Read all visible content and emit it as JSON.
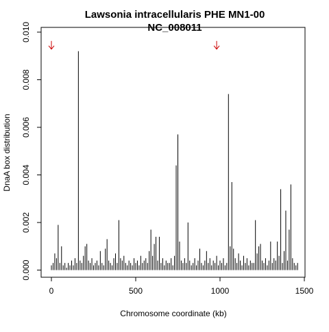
{
  "chart_data": {
    "type": "spike",
    "title": [
      "Lawsonia intracellularis PHE MN1-00",
      "NC_008011"
    ],
    "x_label": "Chromosome coordinate (kb)",
    "y_label": "DnaA box distribution",
    "color": "#000000",
    "xlim": [
      -61,
      1504
    ],
    "ylim": [
      -0.0003,
      0.0102
    ],
    "xticks": [
      0,
      500,
      1000,
      1500
    ],
    "yticks": [
      {
        "value": 0,
        "label": "0.000"
      },
      {
        "value": 0.002,
        "label": "0.002"
      },
      {
        "value": 0.004,
        "label": "0.004"
      },
      {
        "value": 0.006,
        "label": "0.006"
      },
      {
        "value": 0.008,
        "label": "0.008"
      },
      {
        "value": 0.01,
        "label": "0.010"
      }
    ],
    "arrows": {
      "x": [
        0,
        980
      ],
      "y": 0.0094,
      "color": "#cc0000"
    },
    "x": [
      0,
      10,
      20,
      30,
      40,
      50,
      60,
      70,
      80,
      90,
      100,
      110,
      120,
      130,
      140,
      150,
      160,
      170,
      180,
      190,
      200,
      210,
      220,
      230,
      240,
      250,
      260,
      270,
      280,
      290,
      300,
      310,
      320,
      330,
      340,
      350,
      360,
      370,
      380,
      390,
      400,
      410,
      420,
      430,
      440,
      450,
      460,
      470,
      480,
      490,
      500,
      510,
      520,
      530,
      540,
      550,
      560,
      570,
      580,
      590,
      600,
      610,
      620,
      630,
      640,
      650,
      660,
      670,
      680,
      690,
      700,
      710,
      720,
      730,
      740,
      750,
      760,
      770,
      780,
      790,
      800,
      810,
      820,
      830,
      840,
      850,
      860,
      870,
      880,
      890,
      900,
      910,
      920,
      930,
      940,
      950,
      960,
      970,
      980,
      990,
      1000,
      1010,
      1020,
      1030,
      1040,
      1050,
      1060,
      1070,
      1080,
      1090,
      1100,
      1110,
      1120,
      1130,
      1140,
      1150,
      1160,
      1170,
      1180,
      1190,
      1200,
      1210,
      1220,
      1230,
      1240,
      1250,
      1260,
      1270,
      1280,
      1290,
      1300,
      1310,
      1320,
      1330,
      1340,
      1350,
      1360,
      1370,
      1380,
      1390,
      1400,
      1410,
      1420,
      1430,
      1440,
      1450,
      1460
    ],
    "values": [
      0.0002,
      0.0003,
      0.0007,
      0.0005,
      0.0019,
      0.0003,
      0.001,
      0.0002,
      0.0003,
      0.0001,
      0.0003,
      0.0002,
      0.0004,
      0.0002,
      0.0005,
      0.0003,
      0.0092,
      0.0004,
      0.0003,
      0.0006,
      0.001,
      0.0011,
      0.0004,
      0.0003,
      0.0005,
      0.0002,
      0.0003,
      0.0004,
      0.0002,
      0.0008,
      0.0003,
      0.0002,
      0.0009,
      0.0013,
      0.0004,
      0.0003,
      0.0002,
      0.0005,
      0.0007,
      0.0003,
      0.0021,
      0.0005,
      0.0004,
      0.0006,
      0.0003,
      0.0002,
      0.0004,
      0.0003,
      0.0002,
      0.0005,
      0.0003,
      0.0004,
      0.0002,
      0.0006,
      0.0003,
      0.0004,
      0.0005,
      0.0003,
      0.0008,
      0.0017,
      0.0006,
      0.0011,
      0.0014,
      0.0004,
      0.0014,
      0.0003,
      0.0005,
      0.0002,
      0.0004,
      0.0003,
      0.0003,
      0.0005,
      0.0002,
      0.0006,
      0.0044,
      0.0057,
      0.0012,
      0.0004,
      0.0003,
      0.0005,
      0.0003,
      0.002,
      0.0004,
      0.0002,
      0.0003,
      0.0005,
      0.0002,
      0.0004,
      0.0009,
      0.0003,
      0.0002,
      0.0004,
      0.0008,
      0.0003,
      0.0005,
      0.0002,
      0.0004,
      0.0003,
      0.0006,
      0.0002,
      0.0004,
      0.0003,
      0.0005,
      0.0002,
      0.0003,
      0.0074,
      0.001,
      0.0037,
      0.0009,
      0.0005,
      0.0003,
      0.0007,
      0.0004,
      0.0002,
      0.0006,
      0.0003,
      0.0005,
      0.0002,
      0.0004,
      0.0003,
      0.0003,
      0.0021,
      0.0007,
      0.001,
      0.0011,
      0.0004,
      0.0003,
      0.0005,
      0.0002,
      0.0004,
      0.0012,
      0.0003,
      0.0005,
      0.0004,
      0.0012,
      0.0006,
      0.0034,
      0.0003,
      0.0008,
      0.0025,
      0.0004,
      0.0017,
      0.0036,
      0.0005,
      0.0003,
      0.0002,
      0.0003
    ]
  }
}
